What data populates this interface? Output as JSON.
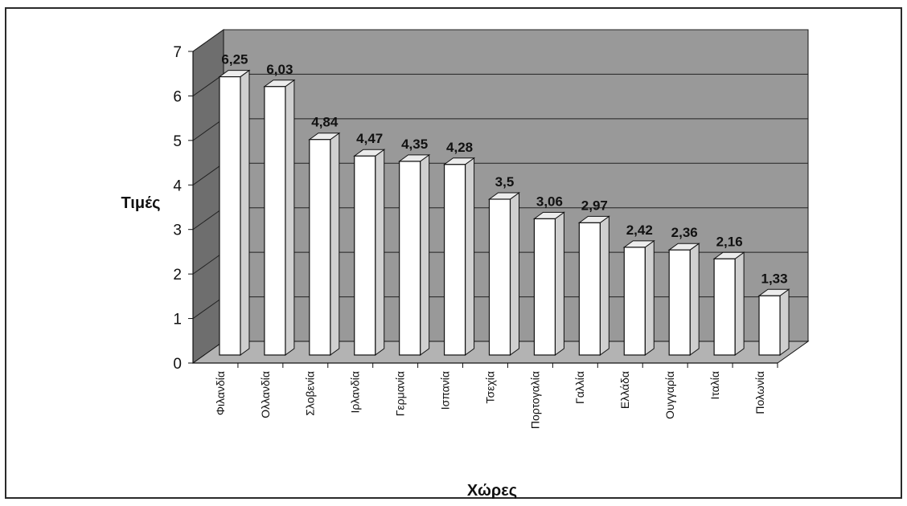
{
  "chart_data": {
    "type": "bar",
    "style": "3d-column",
    "xlabel": "Χώρες",
    "ylabel": "Τιμές",
    "ylim": [
      0,
      7
    ],
    "yticks": [
      "0",
      "1",
      "2",
      "3",
      "4",
      "5",
      "6",
      "7"
    ],
    "grid": true,
    "categories": [
      "Φιλανδία",
      "Ολλανδία",
      "Σλοβενία",
      "Ιρλανδία",
      "Γερμανία",
      "Ισπανία",
      "Τσεχία",
      "Πορτογαλία",
      "Γαλλία",
      "Ελλάδα",
      "Ουγγαρία",
      "Ιταλία",
      "Πολωνία"
    ],
    "values": [
      6.25,
      6.03,
      4.84,
      4.47,
      4.35,
      4.28,
      3.5,
      3.06,
      2.97,
      2.42,
      2.36,
      2.16,
      1.33
    ],
    "data_labels": [
      "6,25",
      "6,03",
      "4,84",
      "4,47",
      "4,35",
      "4,28",
      "3,5",
      "3,06",
      "2,97",
      "2,42",
      "2,36",
      "2,16",
      "1,33"
    ],
    "colors": {
      "wall": "#999999",
      "side_wall": "#6e6e6e",
      "floor": "#b3b3b3",
      "bar_front": "#ffffff",
      "bar_side": "#cfcfcf",
      "bar_top": "#ececec",
      "stroke": "#111111",
      "gridline": "#222222"
    }
  }
}
